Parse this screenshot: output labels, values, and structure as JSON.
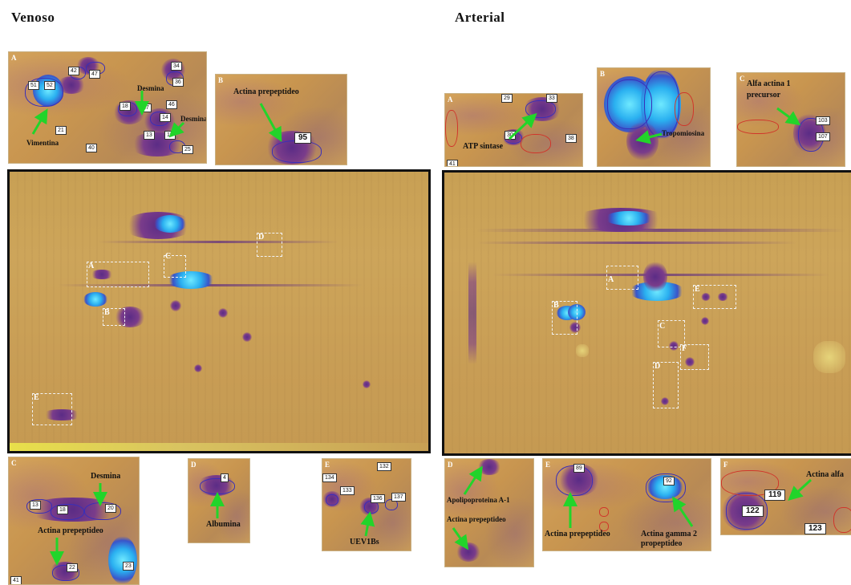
{
  "headers": {
    "venoso": "Venoso",
    "arterial": "Arterial"
  },
  "venoso": {
    "top_panels": {
      "A": {
        "letter": "A",
        "labels": [
          "Desmina",
          "Desmina",
          "Vimentina"
        ],
        "spot_numbers": [
          "51",
          "52",
          "42",
          "47",
          "34",
          "36",
          "46",
          "18",
          "17",
          "14",
          "13",
          "15",
          "25",
          "21",
          "40"
        ]
      },
      "B": {
        "letter": "B",
        "label": "Actina prepeptideo",
        "spot_number": "95"
      }
    },
    "gel_box_letters": [
      "A",
      "B",
      "C",
      "D",
      "E"
    ],
    "bottom_panels": {
      "C": {
        "letter": "C",
        "labels": [
          "Desmina",
          "Actina prepeptideo"
        ],
        "spot_numbers": [
          "13",
          "18",
          "20",
          "22",
          "23",
          "41"
        ]
      },
      "D": {
        "letter": "D",
        "label": "Albumina",
        "spot_number": "4"
      },
      "E": {
        "letter": "E",
        "label": "UEV1Bs",
        "spot_numbers": [
          "132",
          "134",
          "133",
          "136",
          "137"
        ]
      }
    }
  },
  "arterial": {
    "top_panels": {
      "A": {
        "letter": "A",
        "label": "ATP sintase",
        "spot_numbers": [
          "29",
          "33",
          "30",
          "38",
          "41"
        ]
      },
      "B": {
        "letter": "B",
        "label": "Tropomiosina"
      },
      "C": {
        "letter": "C",
        "label_line1": "Alfa actina 1",
        "label_line2": "precursor",
        "spot_numbers": [
          "103",
          "107"
        ]
      }
    },
    "gel_box_letters": [
      "A",
      "B",
      "C",
      "D",
      "E",
      "F"
    ],
    "bottom_panels": {
      "D": {
        "letter": "D",
        "labels": [
          "Apolipoproteina A-1",
          "Actina prepeptideo"
        ]
      },
      "E": {
        "letter": "E",
        "labels": [
          "Actina prepeptideo",
          "Actina gamma 2",
          "propeptideo"
        ],
        "spot_numbers": [
          "89",
          "92"
        ]
      },
      "F": {
        "letter": "F",
        "label": "Actina alfa",
        "spot_numbers": [
          "119",
          "122",
          "123"
        ]
      }
    }
  },
  "colors": {
    "arrow": "#22d42a",
    "gel_background": "#c8a054",
    "spot_purple": "#5b2c86",
    "spot_blue": "#2ab0f0",
    "outline": "#3a2fb8"
  }
}
